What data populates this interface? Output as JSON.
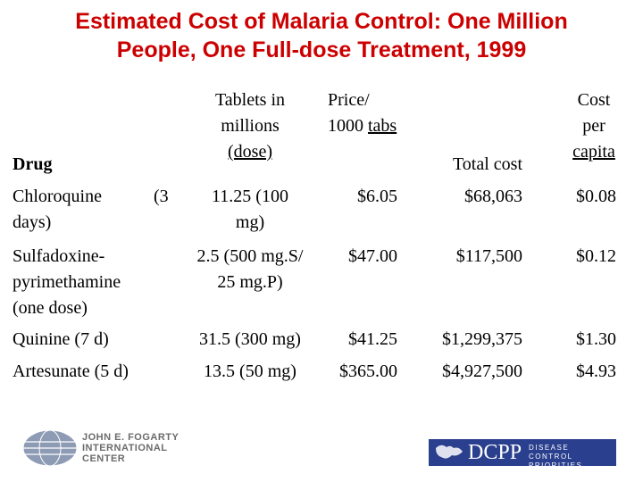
{
  "title": {
    "line1": "Estimated Cost of Malaria Control:  One Million",
    "line2": "People, One Full-dose Treatment, 1999"
  },
  "table": {
    "headers": {
      "drug": "Drug",
      "tablets_l1": "Tablets in",
      "tablets_l2": "millions",
      "tablets_l3": "(dose)",
      "price_l1": "Price/",
      "price_l2": "1000 tabs",
      "total": "Total cost",
      "percap_l1": "Cost",
      "percap_l2": "per",
      "percap_l3": "capita"
    },
    "rows": [
      {
        "drug_l1": "Chloroquine      (3",
        "drug_l2": "days)",
        "tablets_l1": "11.25 (100",
        "tablets_l2": "mg)",
        "price": "$6.05",
        "total": "$68,063",
        "per_capita": "$0.08"
      },
      {
        "drug_l1": "Sulfadoxine-",
        "drug_l2": "pyrimethamine",
        "drug_l3": "(one dose)",
        "tablets_l1": "2.5 (500 mg.S/",
        "tablets_l2": "25 mg.P)",
        "price": "$47.00",
        "total": "$117,500",
        "per_capita": "$0.12"
      },
      {
        "drug_l1": "Quinine (7 d)",
        "tablets_l1": "31.5 (300 mg)",
        "price": "$41.25",
        "total": "$1,299,375",
        "per_capita": "$1.30"
      },
      {
        "drug_l1": "Artesunate (5 d)",
        "tablets_l1": "13.5 (50 mg)",
        "price": "$365.00",
        "total": "$4,927,500",
        "per_capita": "$4.93"
      }
    ]
  },
  "footer": {
    "fogarty_line1": "JOHN E. FOGARTY",
    "fogarty_line2": "INTERNATIONAL",
    "fogarty_line3": "CENTER",
    "dcpp_text": "DCPP",
    "dcpp_line1": "DISEASE CONTROL",
    "dcpp_line2": "PRIORITIES PROJECT"
  },
  "colors": {
    "title": "#cc0000",
    "dcpp_bg": "#2a3f8e"
  }
}
